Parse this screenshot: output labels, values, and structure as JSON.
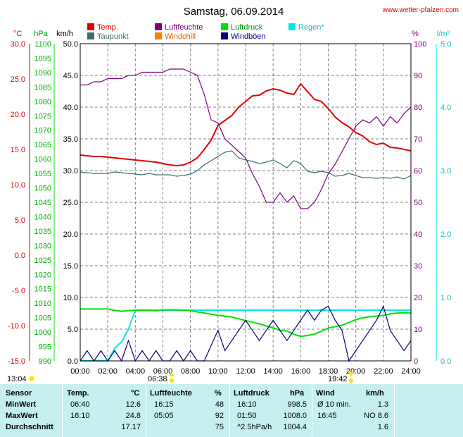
{
  "header": {
    "title": "Samstag, 06.09.2014",
    "site": "www.wetter-pfalzen.com"
  },
  "colors": {
    "temp": "#e00000",
    "taupunkt": "#3d6e6e",
    "luftfeuchte": "#800080",
    "windchill": "#ff8000",
    "luftdruck": "#00e000",
    "windboeen": "#000080",
    "regen": "#00e8e8",
    "grid": "#808080",
    "stats_bg": "#c6f0f0"
  },
  "axes": {
    "units": {
      "temp": "°C",
      "pressure": "hPa",
      "wind": "km/h",
      "humidity": "%",
      "rain": "l/m²"
    },
    "temp_ticks": [
      "30.0",
      "25.0",
      "20.0",
      "15.0",
      "10.0",
      "5.0",
      "0.0",
      "-5.0",
      "-10.0",
      "-15.0"
    ],
    "pressure_ticks": [
      "1100",
      "1095",
      "1090",
      "1085",
      "1080",
      "1075",
      "1070",
      "1065",
      "1060",
      "1055",
      "1050",
      "1045",
      "1040",
      "1035",
      "1030",
      "1025",
      "1020",
      "1015",
      "1010",
      "1005",
      "1000",
      "995",
      "990"
    ],
    "wind_ticks": [
      "50.0",
      "45.0",
      "40.0",
      "35.0",
      "30.0",
      "25.0",
      "20.0",
      "15.0",
      "10.0",
      "5.0",
      "0.0"
    ],
    "humidity_ticks": [
      "100",
      "90",
      "80",
      "70",
      "60",
      "50",
      "40",
      "30",
      "20",
      "10",
      "0"
    ],
    "rain_ticks": [
      "5.0",
      "4.0",
      "3.0",
      "2.0",
      "1.0",
      "0.0"
    ],
    "x_ticks": [
      "00:00",
      "02:00",
      "04:00",
      "06:00",
      "08:00",
      "10:00",
      "12:00",
      "14:00",
      "16:00",
      "18:00",
      "20:00",
      "22:00",
      "24:00"
    ]
  },
  "legend": [
    {
      "label": "Temp.",
      "color": "#e00000"
    },
    {
      "label": "Luftfeuchte",
      "color": "#800080"
    },
    {
      "label": "Luftdruck",
      "color": "#00e000"
    },
    {
      "label": "Regen*",
      "color": "#00e8e8"
    },
    {
      "label": "Taupunkt",
      "color": "#3d6e6e"
    },
    {
      "label": "Windchill",
      "color": "#ff8000"
    },
    {
      "label": "Windböen",
      "color": "#000080"
    }
  ],
  "sun": {
    "sunrise_label": "06:38",
    "sunset_label": "19:42",
    "daylight_label": "13:04"
  },
  "chart_data": {
    "type": "line",
    "title": "Samstag, 06.09.2014",
    "x_range": [
      "00:00",
      "24:00"
    ],
    "ylim_temp": [
      -15,
      30
    ],
    "ylim_pressure": [
      990,
      1100
    ],
    "ylim_wind": [
      0,
      50
    ],
    "ylim_humidity": [
      0,
      100
    ],
    "ylim_rain": [
      0,
      5
    ],
    "grid": true,
    "x": [
      "00:00",
      "00:30",
      "01:00",
      "01:30",
      "02:00",
      "02:30",
      "03:00",
      "03:30",
      "04:00",
      "04:30",
      "05:00",
      "05:30",
      "06:00",
      "06:30",
      "07:00",
      "07:30",
      "08:00",
      "08:30",
      "09:00",
      "09:30",
      "10:00",
      "10:30",
      "11:00",
      "11:30",
      "12:00",
      "12:30",
      "13:00",
      "13:30",
      "14:00",
      "14:30",
      "15:00",
      "15:30",
      "16:00",
      "16:30",
      "17:00",
      "17:30",
      "18:00",
      "18:30",
      "19:00",
      "19:30",
      "20:00",
      "20:30",
      "21:00",
      "21:30",
      "22:00",
      "22:30",
      "23:00",
      "23:30",
      "24:00"
    ],
    "series": [
      {
        "name": "Temp.",
        "axis": "temp",
        "values": [
          14.2,
          14.1,
          14.0,
          14.0,
          13.9,
          13.8,
          13.7,
          13.6,
          13.5,
          13.4,
          13.3,
          13.2,
          13.0,
          12.8,
          12.7,
          12.8,
          13.2,
          13.8,
          15.0,
          16.3,
          18.4,
          19.1,
          19.8,
          21.0,
          21.8,
          22.6,
          22.7,
          23.3,
          23.6,
          23.4,
          23.0,
          22.8,
          24.3,
          23.2,
          22.1,
          21.8,
          20.8,
          19.6,
          18.8,
          18.2,
          17.4,
          16.9,
          16.1,
          15.7,
          15.9,
          15.3,
          15.2,
          15.0,
          14.8
        ]
      },
      {
        "name": "Taupunkt",
        "axis": "temp",
        "values": [
          11.8,
          11.7,
          11.6,
          11.6,
          11.6,
          11.8,
          11.7,
          11.6,
          11.5,
          11.4,
          11.6,
          11.4,
          11.4,
          11.4,
          11.2,
          11.3,
          11.5,
          12.0,
          12.8,
          13.4,
          14.0,
          14.6,
          14.8,
          13.8,
          13.5,
          13.3,
          13.0,
          13.2,
          13.5,
          13.0,
          12.4,
          13.4,
          13.0,
          11.9,
          11.7,
          11.9,
          11.7,
          11.2,
          11.3,
          11.6,
          11.3,
          11.0,
          11.0,
          10.9,
          11.0,
          10.9,
          11.1,
          10.8,
          11.3
        ]
      },
      {
        "name": "Luftfeuchte",
        "axis": "humidity",
        "values": [
          87,
          87,
          88,
          88,
          89,
          89,
          89,
          90,
          90,
          91,
          91,
          91,
          91,
          92,
          92,
          92,
          91,
          90,
          84,
          76,
          75,
          70,
          68,
          66,
          64,
          59,
          55,
          50,
          50,
          53,
          50,
          52,
          48,
          48,
          50,
          54,
          59,
          62,
          66,
          70,
          74,
          76,
          75,
          77,
          74,
          77,
          75,
          78,
          80
        ]
      },
      {
        "name": "Luftdruck",
        "axis": "pressure",
        "values": [
          1008.0,
          1008.0,
          1008.0,
          1008.0,
          1008.0,
          1007.5,
          1007.2,
          1007.4,
          1007.6,
          1007.6,
          1007.6,
          1007.4,
          1007.7,
          1007.7,
          1007.7,
          1007.6,
          1007.4,
          1007.0,
          1006.6,
          1006.2,
          1005.8,
          1005.5,
          1005.2,
          1004.6,
          1004.0,
          1003.4,
          1002.8,
          1002.1,
          1001.5,
          1000.6,
          1000.4,
          999.2,
          998.5,
          998.8,
          999.3,
          1000.3,
          1001.4,
          1001.9,
          1002.4,
          1003.3,
          1004.3,
          1004.9,
          1005.3,
          1005.5,
          1005.8,
          1006.3,
          1006.6,
          1006.7,
          1006.6
        ]
      },
      {
        "name": "Windböen",
        "axis": "wind",
        "values": [
          0,
          1.6,
          0,
          1.6,
          0,
          1.6,
          0,
          3.2,
          0,
          1.6,
          0,
          1.6,
          0,
          0,
          1.6,
          0,
          1.6,
          0,
          0,
          2.4,
          4.8,
          1.6,
          3.2,
          4.8,
          6.4,
          4.8,
          3.2,
          4.8,
          6.4,
          4.8,
          3.2,
          4.8,
          6.4,
          8.0,
          6.4,
          8.0,
          8.6,
          6.4,
          4.8,
          0,
          1.6,
          3.2,
          4.8,
          6.4,
          8.6,
          4.8,
          3.2,
          1.6,
          3.2
        ]
      },
      {
        "name": "Regen*",
        "axis": "rain",
        "values": [
          0,
          0,
          0,
          0,
          0,
          0.2,
          0.3,
          0.5,
          0.8,
          0.8,
          0.8,
          0.8,
          0.8,
          0.8,
          0.8,
          0.8,
          0.8,
          0.8,
          0.8,
          0.8,
          0.8,
          0.8,
          0.8,
          0.8,
          0.8,
          0.8,
          0.8,
          0.8,
          0.8,
          0.8,
          0.8,
          0.8,
          0.8,
          0.8,
          0.8,
          0.8,
          0.8,
          0.8,
          0.8,
          0.8,
          0.8,
          0.8,
          0.8,
          0.8,
          0.8,
          0.8,
          0.8,
          0.8,
          0.8
        ]
      }
    ]
  },
  "stats": {
    "headers": {
      "sensor": "Sensor",
      "temp": "Temp.",
      "temp_unit": "°C",
      "hum": "Luftfeuchte",
      "hum_unit": "%",
      "press": "Luftdruck",
      "press_unit": "hPa",
      "wind": "Wind",
      "wind_unit": "km/h"
    },
    "rows": [
      {
        "label": "MinWert",
        "temp_time": "06:40",
        "temp_val": "12.6",
        "hum_time": "16:15",
        "hum_val": "48",
        "press_time": "16:10",
        "press_val": "998.5",
        "wind_time": "Ø 10 min.",
        "wind_val": "1.3"
      },
      {
        "label": "MaxWert",
        "temp_time": "16:10",
        "temp_val": "24.8",
        "hum_time": "05:05",
        "hum_val": "92",
        "press_time": "01:50",
        "press_val": "1008.0",
        "wind_time": "16:45",
        "wind_val": "NO 8.6"
      },
      {
        "label": "Durchschnitt",
        "temp_time": "",
        "temp_val": "17.17",
        "hum_time": "",
        "hum_val": "75",
        "press_time": "^2.5hPa/h",
        "press_val": "1004.4",
        "wind_time": "",
        "wind_val": "1.6"
      }
    ]
  }
}
